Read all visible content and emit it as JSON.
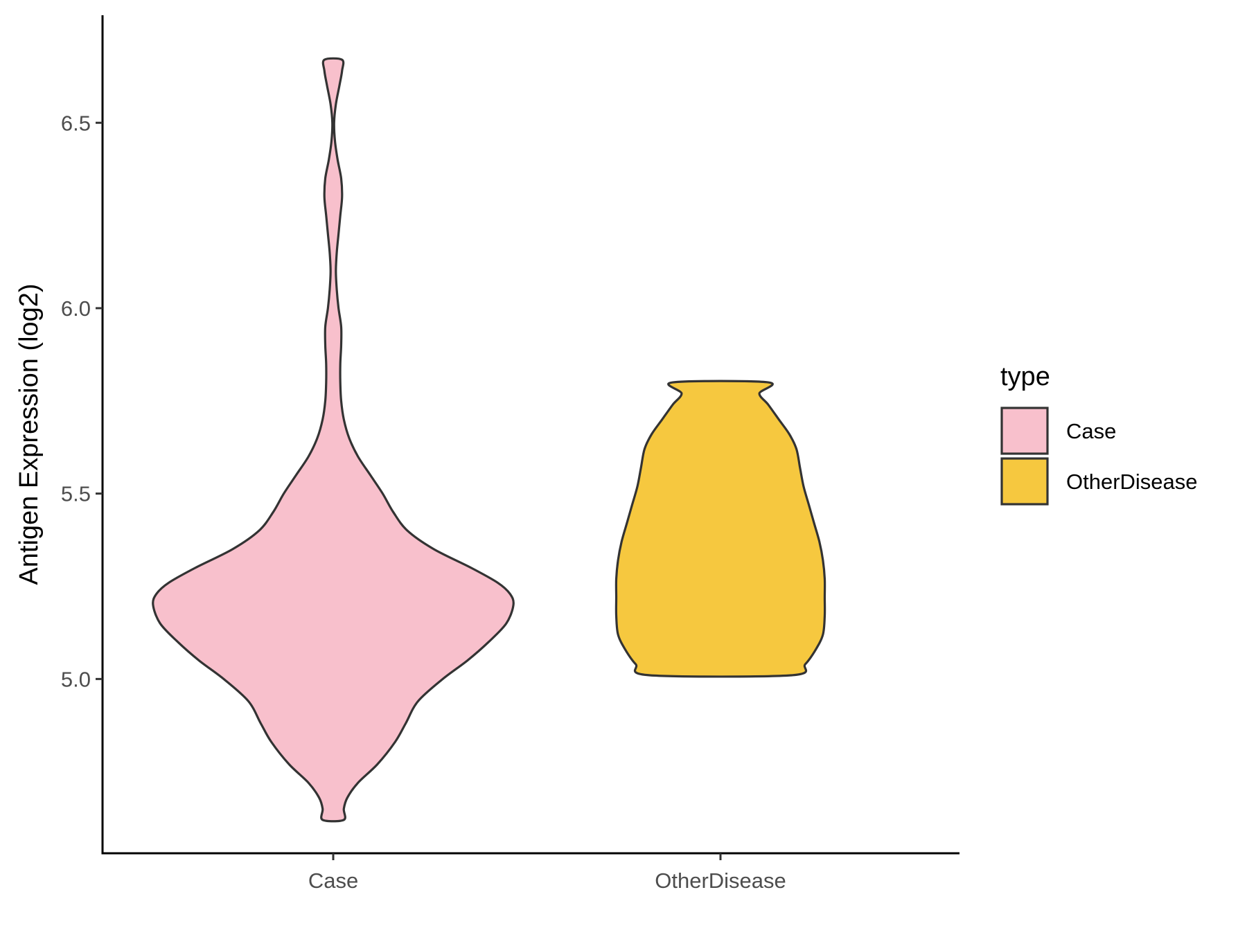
{
  "chart_data": {
    "type": "violin",
    "xlabel": "",
    "ylabel": "Antigen Expression (log2)",
    "categories": [
      "Case",
      "OtherDisease"
    ],
    "ylim": [
      4.53,
      6.79
    ],
    "yticks": [
      "5.0",
      "5.5",
      "6.0",
      "6.5"
    ],
    "grid": false,
    "legend": {
      "title": "type",
      "placement": "right",
      "entries": [
        "Case",
        "OtherDisease"
      ]
    },
    "series": [
      {
        "category": "Case",
        "color": "#F8C0CC",
        "min": 4.62,
        "max": 6.67,
        "density": [
          [
            4.62,
            0.06
          ],
          [
            4.65,
            0.06
          ],
          [
            4.68,
            0.08
          ],
          [
            4.72,
            0.14
          ],
          [
            4.77,
            0.25
          ],
          [
            4.83,
            0.35
          ],
          [
            4.88,
            0.41
          ],
          [
            4.94,
            0.48
          ],
          [
            5.0,
            0.62
          ],
          [
            5.05,
            0.76
          ],
          [
            5.1,
            0.88
          ],
          [
            5.15,
            0.98
          ],
          [
            5.2,
            1.02
          ],
          [
            5.23,
            1.0
          ],
          [
            5.26,
            0.93
          ],
          [
            5.3,
            0.78
          ],
          [
            5.35,
            0.57
          ],
          [
            5.4,
            0.42
          ],
          [
            5.45,
            0.34
          ],
          [
            5.5,
            0.28
          ],
          [
            5.55,
            0.21
          ],
          [
            5.6,
            0.14
          ],
          [
            5.65,
            0.09
          ],
          [
            5.7,
            0.06
          ],
          [
            5.75,
            0.045
          ],
          [
            5.8,
            0.04
          ],
          [
            5.85,
            0.04
          ],
          [
            5.9,
            0.045
          ],
          [
            5.95,
            0.045
          ],
          [
            6.0,
            0.03
          ],
          [
            6.05,
            0.02
          ],
          [
            6.1,
            0.015
          ],
          [
            6.15,
            0.02
          ],
          [
            6.2,
            0.03
          ],
          [
            6.25,
            0.04
          ],
          [
            6.3,
            0.05
          ],
          [
            6.35,
            0.045
          ],
          [
            6.4,
            0.025
          ],
          [
            6.45,
            0.01
          ],
          [
            6.5,
            0.005
          ],
          [
            6.55,
            0.015
          ],
          [
            6.6,
            0.035
          ],
          [
            6.64,
            0.05
          ],
          [
            6.67,
            0.05
          ]
        ]
      },
      {
        "category": "OtherDisease",
        "color": "#F6C83F",
        "min": 5.01,
        "max": 5.8,
        "density": [
          [
            5.01,
            0.4
          ],
          [
            5.04,
            0.48
          ],
          [
            5.08,
            0.54
          ],
          [
            5.12,
            0.58
          ],
          [
            5.17,
            0.59
          ],
          [
            5.22,
            0.59
          ],
          [
            5.27,
            0.59
          ],
          [
            5.32,
            0.58
          ],
          [
            5.37,
            0.56
          ],
          [
            5.42,
            0.53
          ],
          [
            5.47,
            0.5
          ],
          [
            5.52,
            0.47
          ],
          [
            5.57,
            0.45
          ],
          [
            5.62,
            0.43
          ],
          [
            5.66,
            0.39
          ],
          [
            5.7,
            0.33
          ],
          [
            5.74,
            0.27
          ],
          [
            5.77,
            0.22
          ],
          [
            5.8,
            0.27
          ]
        ]
      }
    ]
  }
}
